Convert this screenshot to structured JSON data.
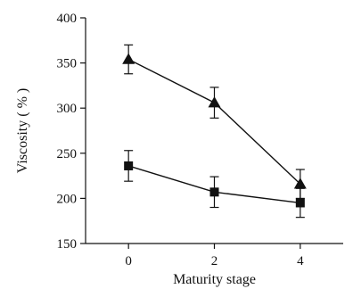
{
  "chart_data": {
    "type": "line",
    "xlabel": "Maturity stage",
    "ylabel": "Viscosity ( % )",
    "x": [
      0,
      2,
      4
    ],
    "xticks": [
      0,
      2,
      4
    ],
    "yticks": [
      150,
      200,
      250,
      300,
      350,
      400
    ],
    "xlim": [
      -1,
      5
    ],
    "ylim": [
      150,
      400
    ],
    "grid": false,
    "legend": "none",
    "series": [
      {
        "marker": "triangle",
        "values": [
          354,
          306,
          216
        ],
        "errors": [
          16,
          17,
          16
        ],
        "color": "#111111"
      },
      {
        "marker": "square",
        "values": [
          236,
          207,
          195
        ],
        "errors": [
          17,
          17,
          16
        ],
        "color": "#111111"
      }
    ]
  }
}
